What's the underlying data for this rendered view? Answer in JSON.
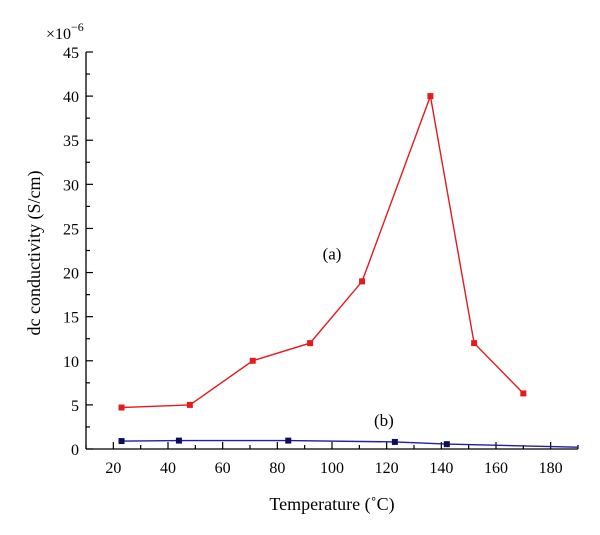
{
  "chart_data": {
    "type": "line",
    "xlabel": "Temperature (˚C)",
    "ylabel": "dc conductivity (S/cm)",
    "y_multiplier": "×10",
    "y_multiplier_exp": "−6",
    "xlim": [
      10,
      190
    ],
    "ylim": [
      0,
      45
    ],
    "x_ticks": [
      20,
      40,
      60,
      80,
      100,
      120,
      140,
      160,
      180
    ],
    "y_ticks": [
      0,
      5,
      10,
      15,
      20,
      25,
      30,
      35,
      40,
      45
    ],
    "grid": false,
    "series": [
      {
        "name": "(a)",
        "color": "#e41a1c",
        "x": [
          23,
          48,
          71,
          92,
          111,
          136,
          152,
          170
        ],
        "y": [
          4.7,
          5.0,
          10.0,
          12.0,
          19.0,
          40.0,
          12.0,
          6.3
        ],
        "label_x": 100,
        "label_y": 21.5
      },
      {
        "name": "(b)",
        "color": "#1f1fa8",
        "marker_color": "#0d0d5e",
        "x": [
          23,
          44,
          84,
          123,
          142,
          190
        ],
        "y": [
          0.9,
          0.95,
          0.95,
          0.8,
          0.55,
          0.2
        ],
        "markers": [
          true,
          true,
          true,
          true,
          true,
          false
        ],
        "label_x": 119,
        "label_y": 2.6
      }
    ]
  }
}
